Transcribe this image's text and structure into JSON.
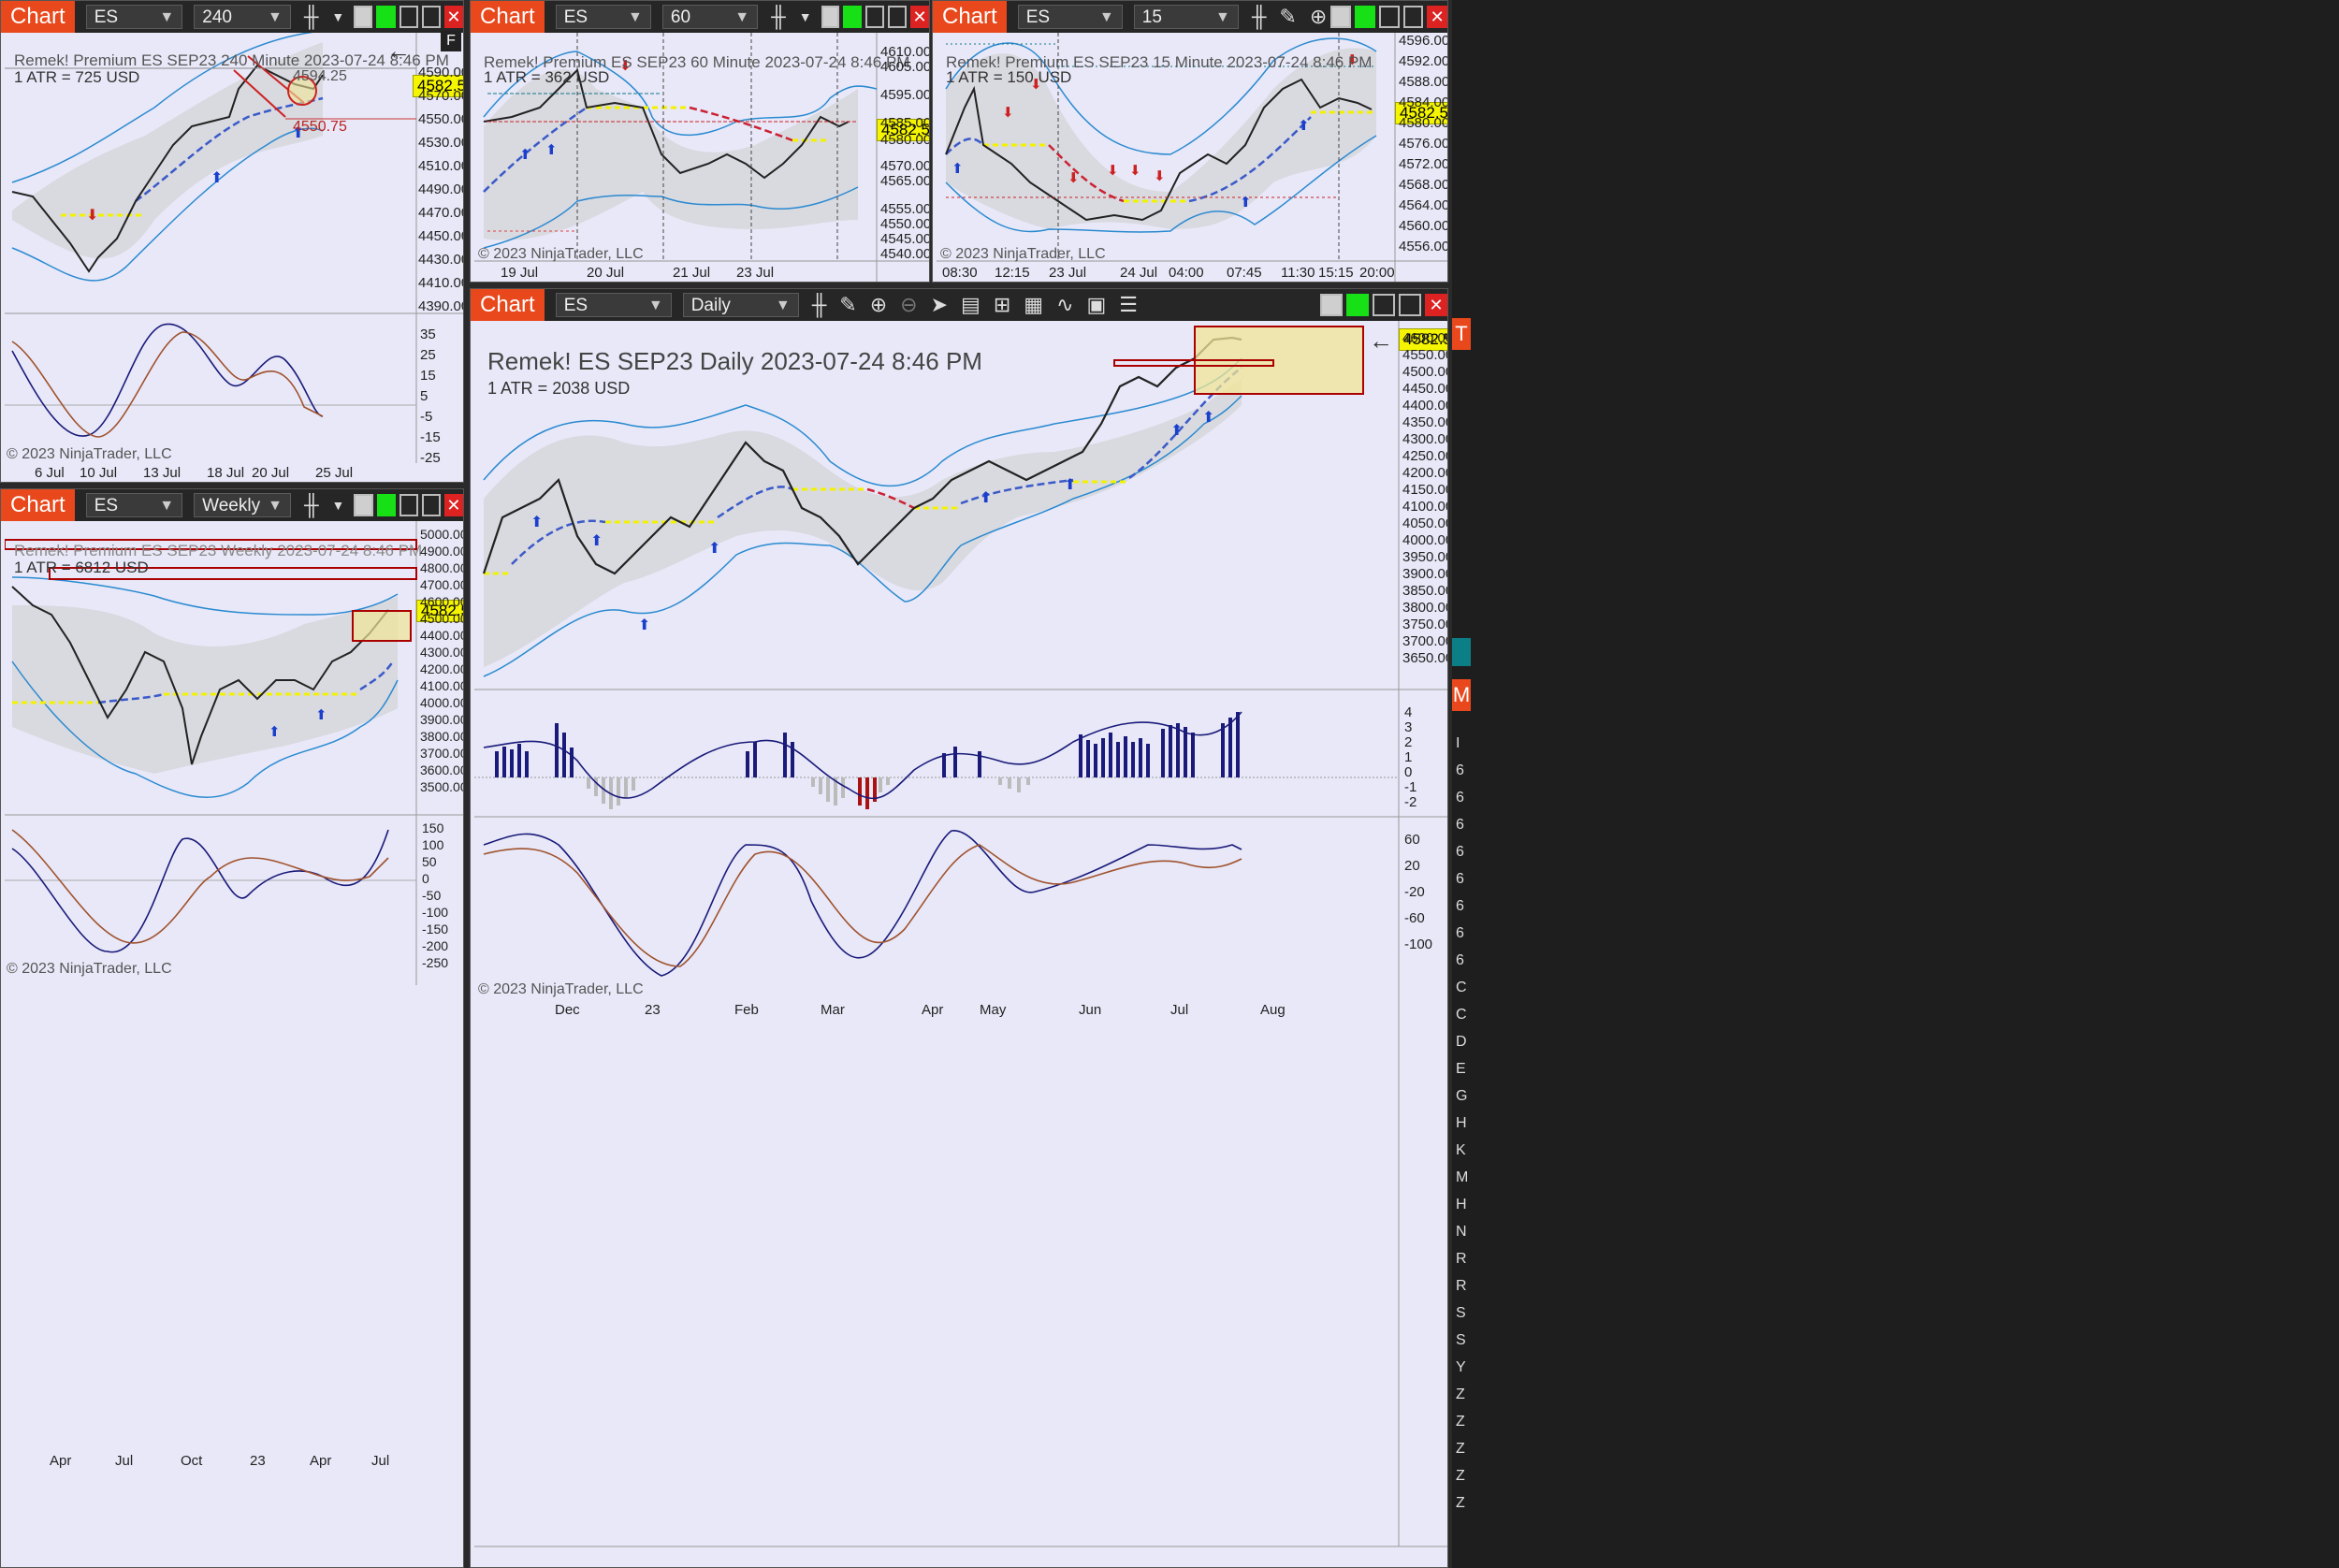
{
  "common": {
    "chart_tab": "Chart",
    "instrument": "ES SEP23",
    "copyright": "© 2023 NinjaTrader, LLC",
    "last_price": "4582.50"
  },
  "w240": {
    "period": "240 Minute",
    "header": "Remek!  Premium  ES SEP23  240 Minute  2023-07-24 8:46 PM",
    "atr": "1 ATR = 725 USD",
    "y_labels": [
      "4590.00",
      "4570.00",
      "4550.00",
      "4530.00",
      "4510.00",
      "4490.00",
      "4470.00",
      "4450.00",
      "4430.00",
      "4410.00",
      "4390.00"
    ],
    "osc_labels": [
      "35",
      "25",
      "15",
      "5",
      "-5",
      "-15",
      "-25"
    ],
    "x_labels": [
      "6 Jul",
      "10 Jul",
      "13 Jul",
      "18 Jul",
      "20 Jul",
      "25 Jul"
    ],
    "level_a": "4594.25",
    "level_b": "4550.75",
    "flag": "F"
  },
  "w60": {
    "period": "60 Minute",
    "header": "Remek!  Premium  ES SEP23  60 Minute  2023-07-24 8:46 PM",
    "atr": "1 ATR = 362 USD",
    "y_labels": [
      "4610.00",
      "4605.00",
      "4595.00",
      "4585.00",
      "4580.00",
      "4570.00",
      "4565.00",
      "4555.00",
      "4550.00",
      "4545.00",
      "4540.00"
    ],
    "x_labels": [
      "19 Jul",
      "20 Jul",
      "21 Jul",
      "23 Jul"
    ]
  },
  "w15": {
    "period": "15 Minute",
    "header": "Remek!  Premium  ES SEP23  15 Minute  2023-07-24 8:46 PM",
    "atr": "1 ATR = 150 USD",
    "y_labels": [
      "4596.00",
      "4592.00",
      "4588.00",
      "4584.00",
      "4580.00",
      "4576.00",
      "4572.00",
      "4568.00",
      "4564.00",
      "4560.00",
      "4556.00"
    ],
    "x_labels": [
      "08:30",
      "12:15",
      "23 Jul",
      "24 Jul",
      "04:00",
      "07:45",
      "11:30",
      "15:15",
      "20:00"
    ]
  },
  "wk": {
    "period": "Weekly",
    "header": "Remek!  Premium  ES SEP23  Weekly  2023-07-24 8:46 PM",
    "atr": "1 ATR = 6812 USD",
    "y_labels": [
      "5000.00",
      "4900.00",
      "4800.00",
      "4700.00",
      "4600.00",
      "4500.00",
      "4400.00",
      "4300.00",
      "4200.00",
      "4100.00",
      "4000.00",
      "3900.00",
      "3800.00",
      "3700.00",
      "3600.00",
      "3500.00"
    ],
    "osc_labels": [
      "150",
      "100",
      "50",
      "0",
      "-50",
      "-100",
      "-150",
      "-200",
      "-250"
    ],
    "x_labels": [
      "Apr",
      "Jul",
      "Oct",
      "23",
      "Apr",
      "Jul"
    ]
  },
  "daily": {
    "period": "Daily",
    "header": "Remek!  ES SEP23  Daily  2023-07-24 8:46 PM",
    "atr": "1 ATR = 2038 USD",
    "y_labels": [
      "4600.00",
      "4550.00",
      "4500.00",
      "4450.00",
      "4400.00",
      "4350.00",
      "4300.00",
      "4250.00",
      "4200.00",
      "4150.00",
      "4100.00",
      "4050.00",
      "4000.00",
      "3950.00",
      "3900.00",
      "3850.00",
      "3800.00",
      "3750.00",
      "3700.00",
      "3650.00"
    ],
    "hist_labels": [
      "4",
      "3",
      "2",
      "1",
      "0",
      "-1",
      "-2"
    ],
    "osc_labels": [
      "60",
      "20",
      "-20",
      "-60",
      "-100"
    ],
    "x_labels": [
      "Dec",
      "23",
      "Feb",
      "Mar",
      "Apr",
      "May",
      "Jun",
      "Jul",
      "Aug"
    ]
  },
  "edge": {
    "letters": [
      "T",
      "M",
      "I",
      "6",
      "6",
      "6",
      "6",
      "6",
      "6",
      "6",
      "6",
      "C",
      "C",
      "D",
      "E",
      "G",
      "H",
      "K",
      "M",
      "H",
      "N",
      "R",
      "R",
      "S",
      "S",
      "Y",
      "Z",
      "Z",
      "Z",
      "Z",
      "Z"
    ]
  }
}
